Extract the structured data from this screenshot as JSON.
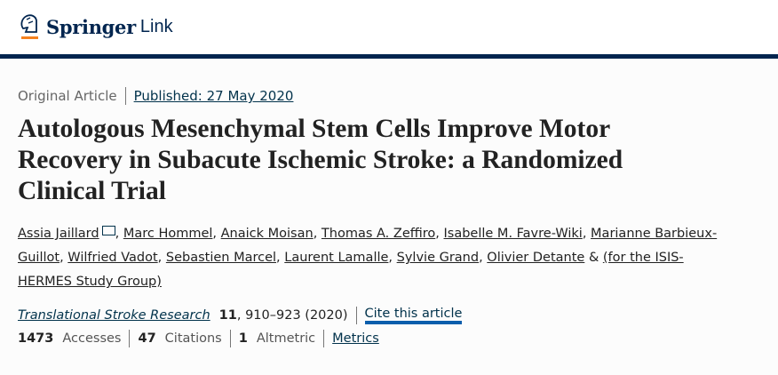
{
  "header": {
    "brand": "Springer",
    "brand_suffix": "Link",
    "accent": "#f58220",
    "navy": "#01254f"
  },
  "article": {
    "type": "Original Article",
    "published": "Published: 27 May 2020",
    "title": "Autologous Mesenchymal Stem Cells Improve Motor Recovery in Subacute Ischemic Stroke: a Randomized Clinical Trial",
    "authors": [
      "Assia Jaillard",
      "Marc Hommel",
      "Anaick Moisan",
      "Thomas A. Zeffiro",
      "Isabelle M. Favre-Wiki",
      "Marianne Barbieux-Guillot",
      "Wilfried Vadot",
      "Sebastien Marcel",
      "Laurent Lamalle",
      "Sylvie Grand",
      "Olivier Detante"
    ],
    "author_group_joiner": "&",
    "author_group": "(for the ISIS-HERMES Study Group)",
    "journal": "Translational Stroke Research",
    "volume": "11",
    "pages_year": ", 910–923 (2020)",
    "cite_label": "Cite this article"
  },
  "stats": {
    "accesses": "1473",
    "accesses_label": "Accesses",
    "citations": "47",
    "citations_label": "Citations",
    "altmetric": "1",
    "altmetric_label": "Altmetric",
    "metrics_link": "Metrics"
  }
}
